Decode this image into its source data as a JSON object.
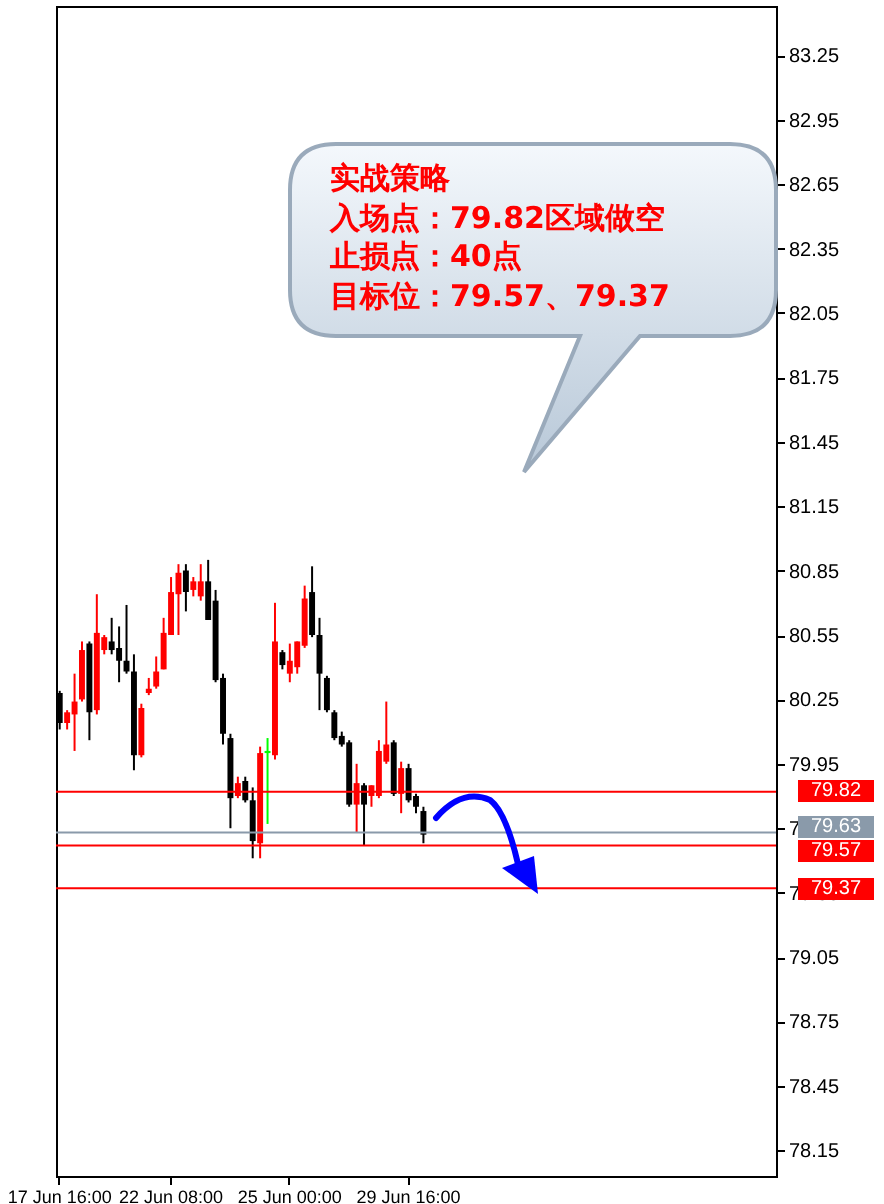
{
  "chart_data": {
    "type": "candlestick",
    "categories": [
      "17 Jun 16:00",
      null,
      null,
      null,
      null,
      null,
      null,
      null,
      null,
      null,
      null,
      null,
      null,
      null,
      null,
      "22 Jun 08:00",
      null,
      null,
      null,
      null,
      null,
      null,
      null,
      null,
      null,
      null,
      null,
      null,
      null,
      null,
      null,
      "25 Jun 00:00",
      null,
      null,
      null,
      null,
      null,
      null,
      null,
      null,
      null,
      null,
      null,
      null,
      null,
      null,
      null,
      "29 Jun 16:00",
      null,
      null,
      null,
      null,
      null,
      null,
      null,
      null,
      null,
      null,
      null,
      null,
      null,
      null,
      null,
      null,
      null,
      null,
      null,
      null,
      null,
      null,
      null,
      null,
      null,
      null,
      null,
      null,
      null,
      null,
      null,
      null,
      null,
      null,
      null,
      null,
      null,
      null,
      null,
      null,
      null,
      null,
      null,
      null,
      null,
      null,
      null,
      null,
      null
    ],
    "ohlc": [
      [
        80.28,
        80.29,
        80.11,
        80.14
      ],
      [
        80.14,
        80.2,
        80.11,
        80.19
      ],
      [
        80.18,
        80.37,
        80.01,
        80.24
      ],
      [
        80.25,
        80.52,
        80.24,
        80.48
      ],
      [
        80.51,
        80.52,
        80.06,
        80.19
      ],
      [
        80.2,
        80.74,
        80.18,
        80.56
      ],
      [
        80.48,
        80.55,
        80.46,
        80.54
      ],
      [
        80.52,
        80.63,
        80.46,
        80.48
      ],
      [
        80.49,
        80.59,
        80.33,
        80.43
      ],
      [
        80.43,
        80.69,
        80.37,
        80.38
      ],
      [
        80.38,
        80.46,
        79.92,
        79.99
      ],
      [
        79.99,
        80.23,
        79.98,
        80.21
      ],
      [
        80.28,
        80.35,
        80.27,
        80.3
      ],
      [
        80.31,
        80.45,
        80.3,
        80.38
      ],
      [
        80.39,
        80.63,
        80.39,
        80.56
      ],
      [
        80.55,
        80.82,
        80.55,
        80.75
      ],
      [
        80.74,
        80.88,
        80.55,
        80.84
      ],
      [
        80.85,
        80.88,
        80.66,
        80.75
      ],
      [
        80.76,
        80.82,
        80.73,
        80.8
      ],
      [
        80.73,
        80.88,
        80.71,
        80.8
      ],
      [
        80.8,
        80.9,
        80.62,
        80.62
      ],
      [
        80.71,
        80.76,
        80.33,
        80.34
      ],
      [
        80.35,
        80.37,
        80.04,
        80.09
      ],
      [
        80.07,
        80.09,
        79.65,
        79.79
      ],
      [
        79.8,
        79.89,
        79.79,
        79.86
      ],
      [
        79.87,
        79.89,
        79.77,
        79.78
      ],
      [
        79.78,
        79.84,
        79.51,
        79.59
      ],
      [
        79.58,
        80.03,
        79.51,
        80.0
      ],
      [
        80.0,
        80.07,
        79.67,
        80.01
      ],
      [
        79.99,
        80.7,
        79.97,
        80.52
      ],
      [
        80.47,
        80.48,
        80.39,
        80.41
      ],
      [
        80.37,
        80.51,
        80.33,
        80.43
      ],
      [
        80.4,
        80.52,
        80.37,
        80.52
      ],
      [
        80.5,
        80.78,
        80.49,
        80.72
      ],
      [
        80.75,
        80.87,
        80.54,
        80.55
      ],
      [
        80.55,
        80.63,
        80.2,
        80.37
      ],
      [
        80.35,
        80.36,
        80.19,
        80.2
      ],
      [
        80.19,
        80.2,
        80.06,
        80.07
      ],
      [
        80.08,
        80.1,
        80.03,
        80.04
      ],
      [
        80.05,
        80.06,
        79.75,
        79.76
      ],
      [
        79.76,
        79.95,
        79.63,
        79.86
      ],
      [
        79.85,
        79.86,
        79.57,
        79.76
      ],
      [
        79.8,
        79.85,
        79.75,
        79.85
      ],
      [
        79.8,
        80.06,
        79.79,
        80.01
      ],
      [
        79.96,
        80.24,
        79.95,
        80.04
      ],
      [
        80.05,
        80.06,
        79.8,
        79.81
      ],
      [
        79.81,
        79.96,
        79.72,
        79.93
      ],
      [
        79.93,
        79.95,
        79.77,
        79.78
      ],
      [
        79.8,
        79.81,
        79.72,
        79.75
      ],
      [
        79.73,
        79.75,
        79.58,
        79.62
      ],
      null,
      null,
      null,
      null,
      null,
      null,
      null,
      null,
      null,
      null,
      null,
      null,
      null,
      null,
      null,
      null,
      null,
      null,
      null,
      null,
      null,
      null,
      null,
      null,
      null,
      null,
      null,
      null,
      null,
      null,
      null,
      null,
      null,
      null,
      null,
      null,
      null,
      null,
      null,
      null,
      null,
      null,
      null,
      null,
      null,
      null,
      null
    ],
    "colors": [
      "#000000",
      "#ff0000",
      "#ff0000",
      "#ff0000",
      "#000000",
      "#ff0000",
      "#ff0000",
      "#000000",
      "#000000",
      "#000000",
      "#000000",
      "#ff0000",
      "#ff0000",
      "#ff0000",
      "#ff0000",
      "#ff0000",
      "#ff0000",
      "#000000",
      "#ff0000",
      "#ff0000",
      "#000000",
      "#000000",
      "#000000",
      "#000000",
      "#ff0000",
      "#000000",
      "#000000",
      "#ff0000",
      "#00ff00",
      "#ff0000",
      "#000000",
      "#ff0000",
      "#ff0000",
      "#ff0000",
      "#000000",
      "#000000",
      "#000000",
      "#000000",
      "#000000",
      "#000000",
      "#ff0000",
      "#000000",
      "#ff0000",
      "#ff0000",
      "#ff0000",
      "#000000",
      "#ff0000",
      "#000000",
      "#000000",
      "#000000",
      null,
      null,
      null,
      null,
      null,
      null,
      null,
      null,
      null,
      null,
      null,
      null,
      null,
      null,
      null,
      null,
      null,
      null,
      null,
      null,
      null,
      null,
      null,
      null,
      null,
      null,
      null,
      null,
      null,
      null,
      null,
      null,
      null,
      null,
      null,
      null,
      null,
      null,
      null,
      null,
      null,
      null,
      null,
      null,
      null,
      null,
      null
    ],
    "ylim": [
      78.03,
      83.48
    ],
    "yticks": [
      78.15,
      78.45,
      78.75,
      79.05,
      79.35,
      79.65,
      79.95,
      80.25,
      80.55,
      80.85,
      81.15,
      81.45,
      81.75,
      82.05,
      82.35,
      82.65,
      82.95,
      83.25
    ],
    "ref_lines": [
      {
        "axis": "y",
        "value": 79.82,
        "label": "79.82",
        "color": "#ff0000"
      },
      {
        "axis": "y",
        "value": 79.63,
        "label": "79.63",
        "color": "#8a9aaa"
      },
      {
        "axis": "y",
        "value": 79.57,
        "label": "79.57",
        "color": "#ff0000"
      },
      {
        "axis": "y",
        "value": 79.37,
        "label": "79.37",
        "color": "#ff0000"
      }
    ],
    "annotations": [
      "实战策略",
      "入场点：79.82区域做空",
      "止损点：40点",
      "目标位：79.57、79.37"
    ],
    "grid": false
  }
}
